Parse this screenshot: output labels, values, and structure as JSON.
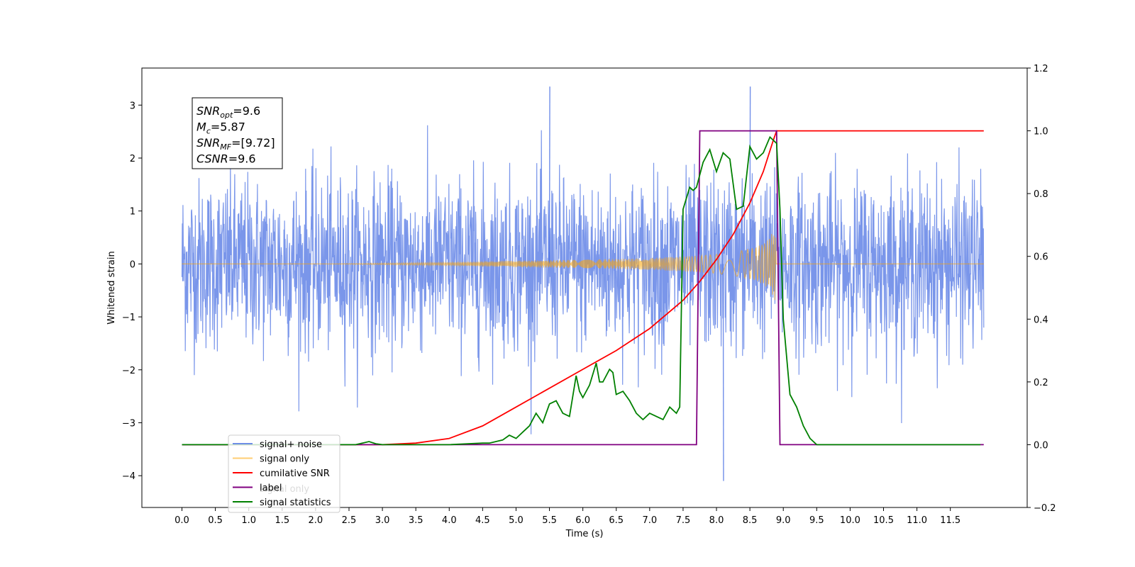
{
  "chart_data": {
    "type": "line",
    "xlabel": "Time (s)",
    "ylabel": "Whitened strain",
    "xlim": [
      -0.6,
      12.65
    ],
    "ylim": [
      -4.6,
      3.7
    ],
    "y2lim": [
      -0.2,
      1.2
    ],
    "x_ticks": [
      "0.0",
      "0.5",
      "1.0",
      "1.5",
      "2.0",
      "2.5",
      "3.0",
      "3.5",
      "4.0",
      "4.5",
      "5.0",
      "5.5",
      "6.0",
      "6.5",
      "7.0",
      "7.5",
      "8.0",
      "8.5",
      "9.0",
      "9.5",
      "10.0",
      "10.5",
      "11.0",
      "11.5"
    ],
    "y_ticks": [
      "−4",
      "−3",
      "−2",
      "−1",
      "0",
      "1",
      "2",
      "3"
    ],
    "y2_ticks": [
      "−0.2",
      "0.0",
      "0.2",
      "0.4",
      "0.6",
      "0.8",
      "1.0",
      "1.2"
    ],
    "legend_position": "lower-left",
    "annotation": {
      "lines": [
        {
          "sym": "SNR",
          "sub": "opt",
          "rest": "=9.6"
        },
        {
          "sym": "M",
          "sub": "c",
          "rest": "=5.87"
        },
        {
          "sym": "SNR",
          "sub": "MF",
          "rest": "=[9.72]"
        },
        {
          "sym": "CSNR",
          "sub": "",
          "rest": "=9.6"
        }
      ]
    },
    "series": [
      {
        "name": "signal+ noise",
        "color": "#4169e1",
        "axis": "left",
        "kind": "noise",
        "x_range": [
          0.0,
          12.0
        ],
        "std": 0.8,
        "peaks": [
          {
            "x": 5.5,
            "y": 3.35
          },
          {
            "x": 8.1,
            "y": -4.1
          },
          {
            "x": 8.5,
            "y": 3.35
          }
        ]
      },
      {
        "name": "signal only",
        "color": "#ffa500",
        "axis": "left",
        "kind": "chirp",
        "envelope": {
          "x": [
            0.0,
            2.0,
            4.0,
            5.0,
            6.0,
            7.0,
            7.5,
            8.0,
            8.3,
            8.6,
            8.8,
            8.88,
            8.9,
            12.0
          ],
          "y": [
            0.0,
            0.0,
            0.03,
            0.06,
            0.08,
            0.11,
            0.14,
            0.18,
            0.23,
            0.32,
            0.48,
            0.75,
            0.0,
            0.0
          ]
        }
      },
      {
        "name": "cumilative SNR",
        "color": "#ff0000",
        "axis": "right",
        "x": [
          0.0,
          2.5,
          3.0,
          3.5,
          4.0,
          4.5,
          5.0,
          5.5,
          6.0,
          6.5,
          7.0,
          7.5,
          7.75,
          8.0,
          8.25,
          8.5,
          8.7,
          8.85,
          8.9,
          12.0
        ],
        "y": [
          0.0,
          0.0,
          0.0,
          0.005,
          0.02,
          0.06,
          0.12,
          0.18,
          0.24,
          0.3,
          0.37,
          0.46,
          0.52,
          0.59,
          0.67,
          0.77,
          0.87,
          0.97,
          1.0,
          1.0
        ]
      },
      {
        "name": "label",
        "color": "#800080",
        "axis": "right",
        "x": [
          0.0,
          7.7,
          7.75,
          8.9,
          8.95,
          12.0
        ],
        "y": [
          0.0,
          0.0,
          1.0,
          1.0,
          0.0,
          0.0
        ]
      },
      {
        "name": "signal statistics",
        "color": "#008000",
        "axis": "right",
        "x": [
          0.0,
          2.6,
          2.7,
          2.8,
          2.9,
          3.0,
          3.5,
          4.0,
          4.5,
          4.6,
          4.7,
          4.8,
          4.9,
          5.0,
          5.1,
          5.2,
          5.3,
          5.4,
          5.5,
          5.6,
          5.65,
          5.7,
          5.8,
          5.9,
          5.95,
          6.0,
          6.1,
          6.2,
          6.25,
          6.3,
          6.4,
          6.45,
          6.5,
          6.6,
          6.7,
          6.8,
          6.9,
          7.0,
          7.1,
          7.2,
          7.3,
          7.4,
          7.45,
          7.5,
          7.6,
          7.65,
          7.7,
          7.8,
          7.9,
          8.0,
          8.1,
          8.2,
          8.3,
          8.4,
          8.5,
          8.6,
          8.7,
          8.8,
          8.9,
          8.95,
          9.0,
          9.1,
          9.2,
          9.3,
          9.4,
          9.5,
          9.6,
          11.0,
          11.95
        ],
        "y": [
          0.0,
          0.0,
          0.005,
          0.01,
          0.003,
          0.0,
          0.0,
          0.0,
          0.005,
          0.005,
          0.01,
          0.015,
          0.03,
          0.02,
          0.04,
          0.06,
          0.1,
          0.07,
          0.13,
          0.14,
          0.12,
          0.1,
          0.09,
          0.22,
          0.17,
          0.15,
          0.19,
          0.26,
          0.2,
          0.2,
          0.24,
          0.23,
          0.16,
          0.17,
          0.14,
          0.1,
          0.08,
          0.1,
          0.09,
          0.08,
          0.12,
          0.1,
          0.12,
          0.75,
          0.82,
          0.81,
          0.82,
          0.9,
          0.94,
          0.87,
          0.93,
          0.91,
          0.75,
          0.76,
          0.95,
          0.91,
          0.93,
          0.98,
          0.96,
          0.75,
          0.4,
          0.16,
          0.12,
          0.06,
          0.02,
          0.0,
          0.0,
          0.0,
          0.0
        ]
      }
    ],
    "legend_entries": [
      "signal+ noise",
      "signal only",
      "cumilative SNR",
      "label",
      "signal statistics"
    ],
    "legend_overlap_text": "signal only"
  }
}
